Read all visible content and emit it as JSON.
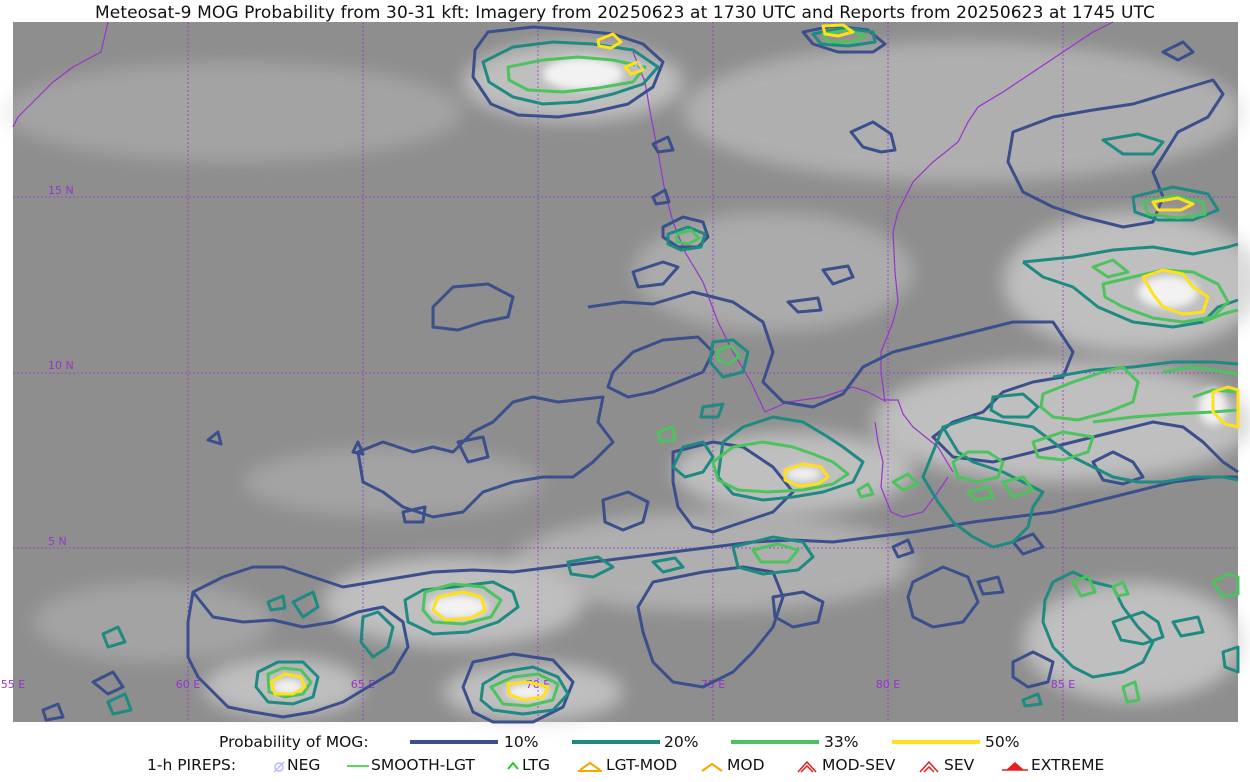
{
  "title": "Meteosat-9 MOG Probability from 30-31 kft: Imagery from 20250623 at 1730 UTC and Reports from 20250623 at 1745 UTC",
  "map": {
    "lat_labels": [
      "15 N",
      "10 N",
      "5 N"
    ],
    "lon_labels": [
      "55 E",
      "60 E",
      "65 E",
      "70 E",
      "75 E",
      "80 E",
      "85 E"
    ],
    "colors": {
      "background": "#8f8f8f",
      "grid": "#9933cc",
      "coast": "#9933cc",
      "p10": "#3a4f8c",
      "p20": "#1f8a82",
      "p33": "#4cc35e",
      "p50": "#ffe11a"
    }
  },
  "legend": {
    "prob_label": "Probability of MOG:",
    "prob_items": [
      {
        "label": "10%",
        "color": "#3a4f8c"
      },
      {
        "label": "20%",
        "color": "#1f8a82"
      },
      {
        "label": "33%",
        "color": "#4cc35e"
      },
      {
        "label": "50%",
        "color": "#ffe11a"
      }
    ],
    "pirep_label": "1-h PIREPS:",
    "pirep_items": [
      {
        "label": "NEG",
        "icon": "neg-icon",
        "color": "#b9b9ff"
      },
      {
        "label": "SMOOTH-LGT",
        "icon": "smooth-lgt-icon",
        "color": "#22cc22"
      },
      {
        "label": "LTG",
        "icon": "ltg-icon",
        "color": "#22cc22"
      },
      {
        "label": "LGT-MOD",
        "icon": "lgt-mod-icon",
        "color": "#f5a700"
      },
      {
        "label": "MOD",
        "icon": "mod-icon",
        "color": "#f5a700"
      },
      {
        "label": "MOD-SEV",
        "icon": "mod-sev-icon",
        "color": "#e81e1e"
      },
      {
        "label": "SEV",
        "icon": "sev-icon",
        "color": "#e81e1e"
      },
      {
        "label": "EXTREME",
        "icon": "extreme-icon",
        "color": "#e81e1e"
      }
    ]
  }
}
